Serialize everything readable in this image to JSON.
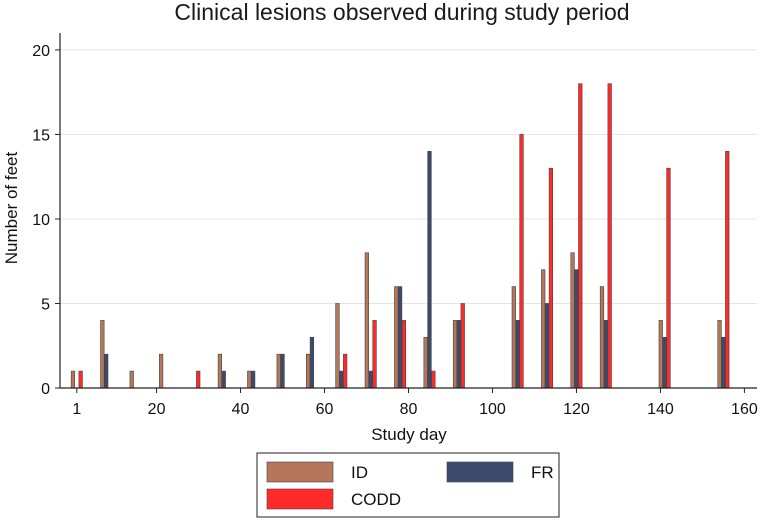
{
  "chart_data": {
    "type": "bar",
    "title": "Clinical lesions observed during study period",
    "xlabel": "Study day",
    "ylabel": "Number of feet",
    "xlim": [
      -3,
      163
    ],
    "ylim": [
      0,
      21
    ],
    "xticks": [
      1,
      20,
      40,
      60,
      80,
      100,
      120,
      140,
      160
    ],
    "yticks": [
      0,
      5,
      10,
      15,
      20
    ],
    "grid": true,
    "legend": "bottom",
    "colors": {
      "ID": "#b5775a",
      "FR": "#3d4a6b",
      "CODD": "#ff2a2a"
    },
    "series": [
      {
        "name": "ID",
        "points": [
          [
            1,
            1
          ],
          [
            8,
            4
          ],
          [
            15,
            1
          ],
          [
            22,
            2
          ],
          [
            36,
            2
          ],
          [
            43,
            1
          ],
          [
            50,
            2
          ],
          [
            57,
            2
          ],
          [
            64,
            5
          ],
          [
            71,
            8
          ],
          [
            78,
            6
          ],
          [
            85,
            3
          ],
          [
            92,
            4
          ],
          [
            106,
            6
          ],
          [
            113,
            7
          ],
          [
            120,
            8
          ],
          [
            127,
            6
          ],
          [
            141,
            4
          ],
          [
            155,
            4
          ]
        ]
      },
      {
        "name": "FR",
        "points": [
          [
            8,
            2
          ],
          [
            36,
            1
          ],
          [
            43,
            1
          ],
          [
            50,
            2
          ],
          [
            57,
            3
          ],
          [
            64,
            1
          ],
          [
            71,
            1
          ],
          [
            78,
            6
          ],
          [
            85,
            14
          ],
          [
            92,
            4
          ],
          [
            106,
            4
          ],
          [
            113,
            5
          ],
          [
            120,
            7
          ],
          [
            127,
            4
          ],
          [
            141,
            3
          ],
          [
            155,
            3
          ]
        ]
      },
      {
        "name": "CODD",
        "points": [
          [
            1,
            1
          ],
          [
            29,
            1
          ],
          [
            64,
            2
          ],
          [
            71,
            4
          ],
          [
            78,
            4
          ],
          [
            85,
            1
          ],
          [
            92,
            5
          ],
          [
            106,
            15
          ],
          [
            113,
            13
          ],
          [
            120,
            18
          ],
          [
            127,
            18
          ],
          [
            141,
            13
          ],
          [
            155,
            14
          ]
        ]
      }
    ]
  }
}
